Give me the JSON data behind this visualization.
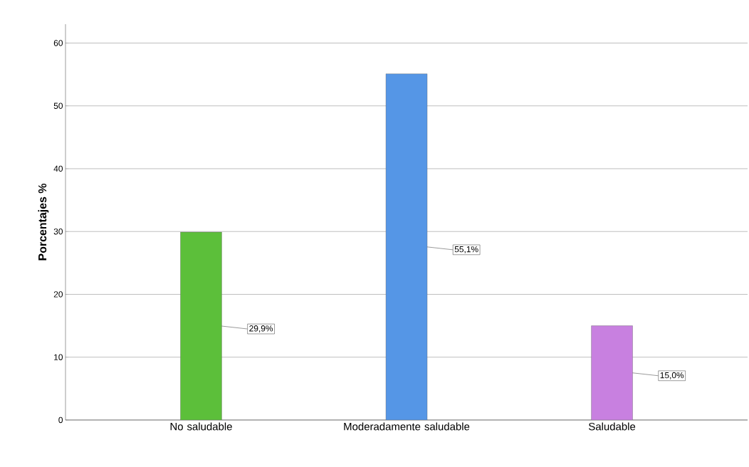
{
  "chart_data": {
    "type": "bar",
    "ylabel": "Porcentajes %",
    "categories": [
      "No saludable",
      "Moderadamente saludable",
      "Saludable"
    ],
    "values": [
      29.9,
      55.1,
      15.0
    ],
    "colors": [
      "#5cbf3a",
      "#5596e6",
      "#c880e0"
    ],
    "value_labels": [
      "29,9%",
      "55,1%",
      "15,0%"
    ],
    "ylim": [
      0,
      63
    ],
    "yticks": [
      0,
      10,
      20,
      30,
      40,
      50,
      60
    ],
    "grid": "y"
  }
}
